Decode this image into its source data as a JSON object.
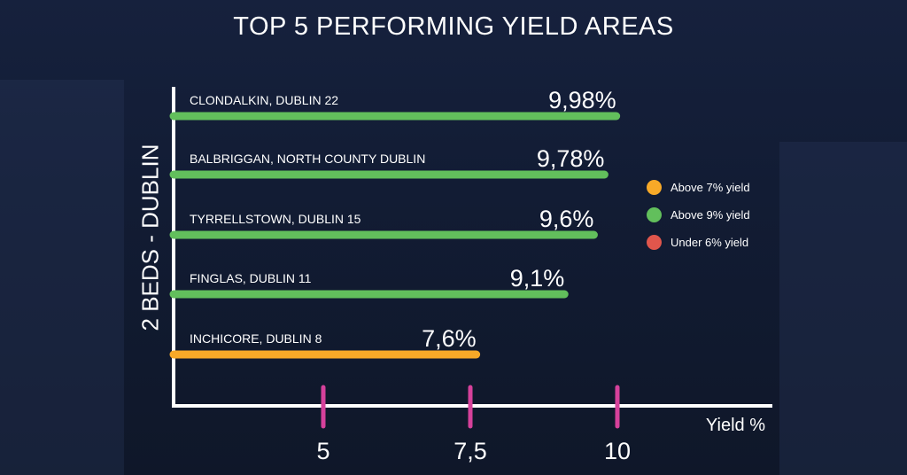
{
  "chart_data": {
    "type": "bar",
    "orientation": "horizontal",
    "title": "TOP 5 PERFORMING YIELD AREAS",
    "ylabel": "2 BEDS - DUBLIN",
    "xlabel": "Yield %",
    "categories": [
      "CLONDALKIN, DUBLIN 22",
      "BALBRIGGAN, NORTH COUNTY DUBLIN",
      "TYRRELLSTOWN, DUBLIN 15",
      "FINGLAS, DUBLIN 11",
      "INCHICORE,  DUBLIN 8"
    ],
    "values": [
      9.98,
      9.78,
      9.6,
      9.1,
      7.6
    ],
    "value_labels": [
      "9,98%",
      "9,78%",
      "9,6%",
      "9,1%",
      "7,6%"
    ],
    "bar_groups": [
      "above9",
      "above9",
      "above9",
      "above9",
      "above7"
    ],
    "xticks": [
      5,
      7.5,
      10
    ],
    "xtick_labels": [
      "5",
      "7,5",
      "10"
    ],
    "legend": [
      {
        "key": "above7",
        "label": "Above 7% yield",
        "color": "#f7a928"
      },
      {
        "key": "above9",
        "label": "Above 9% yield",
        "color": "#62bf5c"
      },
      {
        "key": "under6",
        "label": "Under 6% yield",
        "color": "#e0564c"
      }
    ],
    "legend_position": "right",
    "tick_color": "#d6419b",
    "axis_color": "#ffffff"
  }
}
